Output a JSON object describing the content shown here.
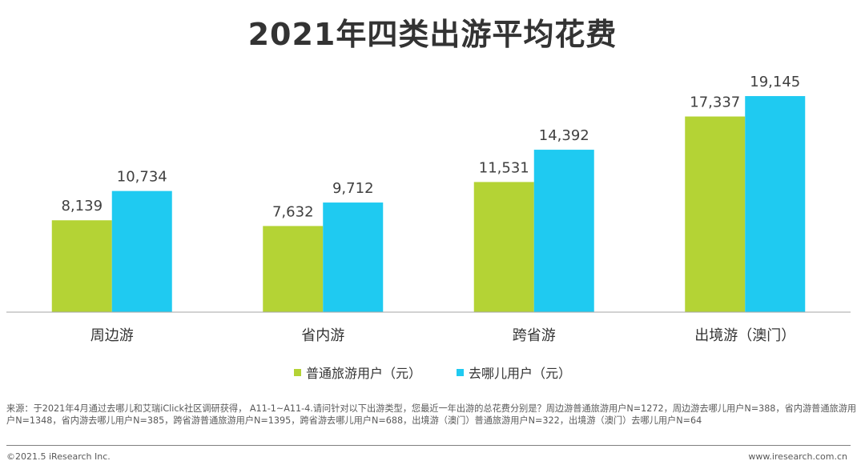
{
  "chart_data": {
    "type": "bar",
    "title": "2021年四类出游平均花费",
    "categories": [
      "周边游",
      "省内游",
      "跨省游",
      "出境游（澳门）"
    ],
    "series": [
      {
        "name": "普通旅游用户（元）",
        "values": [
          8139,
          7632,
          11531,
          17337
        ],
        "labels": [
          "8,139",
          "7,632",
          "11,531",
          "17,337"
        ],
        "color": "#b4d335"
      },
      {
        "name": "去哪儿用户（元）",
        "values": [
          10734,
          9712,
          14392,
          19145
        ],
        "labels": [
          "10,734",
          "9,712",
          "14,392",
          "19,145"
        ],
        "color": "#1fcaf1"
      }
    ],
    "ylim": [
      0,
      20000
    ],
    "grid": false,
    "legend": "bottom"
  },
  "note": "来源：于2021年4月通过去哪儿和艾瑞iClick社区调研获得， A11-1~A11-4.请问针对以下出游类型，您最近一年出游的总花费分别是？周边游普通旅游用户N=1272，周边游去哪儿用户N=388，省内游普通旅游用户N=1348，省内游去哪儿用户N=385，跨省游普通旅游用户N=1395，跨省游去哪儿用户N=688，出境游（澳门）普通旅游用户N=322，出境游（澳门）去哪儿用户N=64",
  "footer": {
    "copyright": "©2021.5 iResearch Inc.",
    "website": "www.iresearch.com.cn"
  }
}
